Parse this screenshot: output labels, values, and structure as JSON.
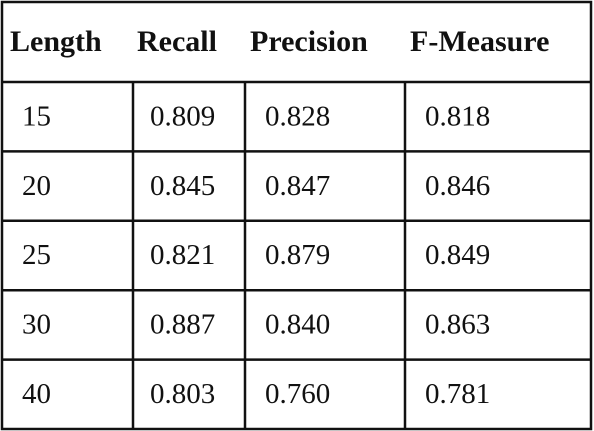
{
  "table": {
    "header": [
      "Length",
      "Recall",
      "Precision",
      "F-Measure"
    ],
    "rows": [
      [
        "15",
        "0.809",
        "0.828",
        "0.818"
      ],
      [
        "20",
        "0.845",
        "0.847",
        "0.846"
      ],
      [
        "25",
        "0.821",
        "0.879",
        "0.849"
      ],
      [
        "30",
        "0.887",
        "0.840",
        "0.863"
      ],
      [
        "40",
        "0.803",
        "0.760",
        "0.781"
      ]
    ]
  }
}
